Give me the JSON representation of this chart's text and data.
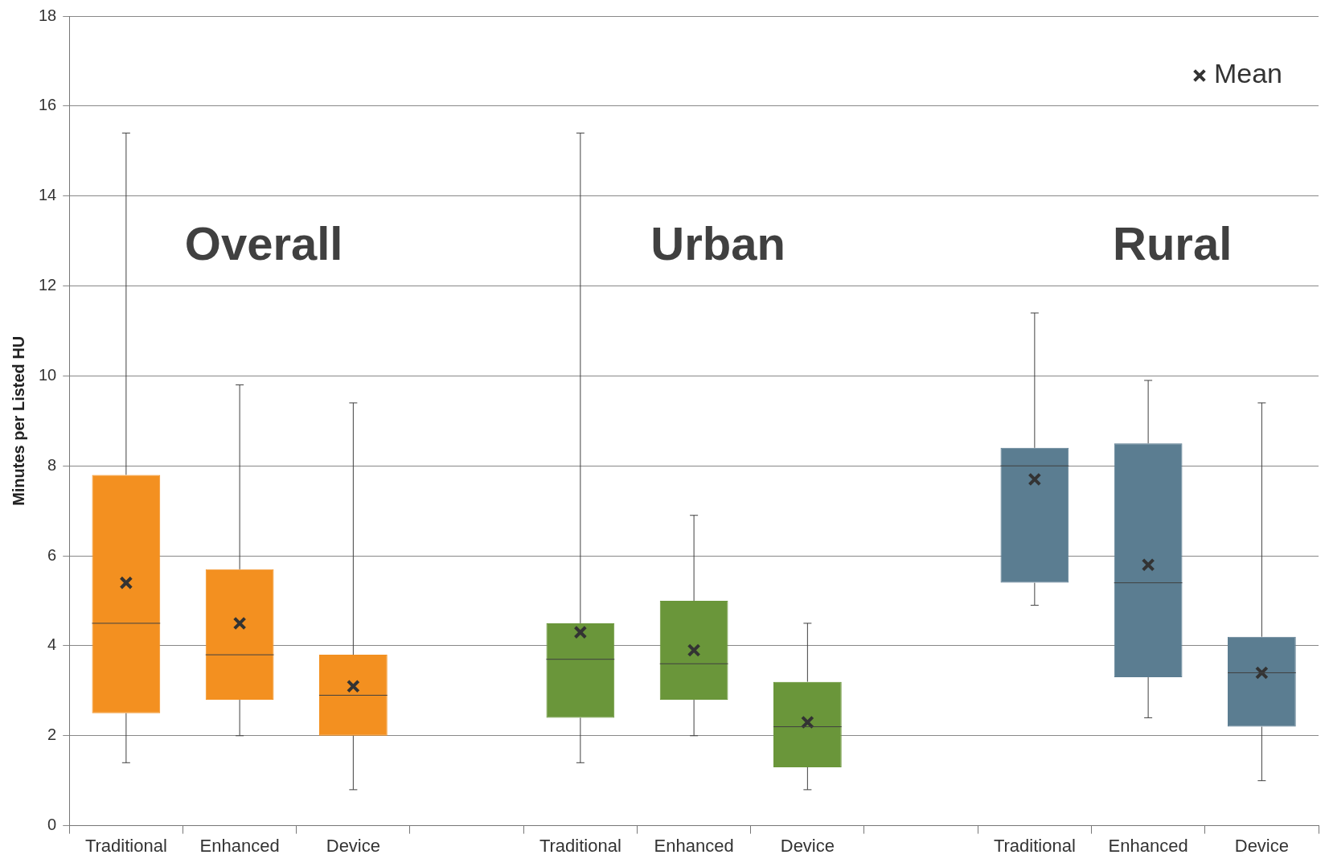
{
  "chart_data": {
    "type": "box",
    "ylabel": "Minutes per Listed HU",
    "categories": [
      "Traditional",
      "Enhanced",
      "Device",
      null,
      "Traditional",
      "Enhanced",
      "Device",
      null,
      "Traditional",
      "Enhanced",
      "Device"
    ],
    "ylim": [
      0,
      18
    ],
    "yticks": [
      0,
      2,
      4,
      6,
      8,
      10,
      12,
      14,
      16,
      18
    ],
    "grid": "y",
    "legend": "top right",
    "annotations": [
      "Overall",
      "Urban",
      "Rural"
    ],
    "series": [
      {
        "color": "#f39020",
        "boxes": [
          {
            "low": 1.4,
            "q1": 2.5,
            "median": 4.5,
            "q3": 7.8,
            "high": 15.4
          },
          {
            "low": 2.0,
            "q1": 2.8,
            "median": 3.8,
            "q3": 5.7,
            "high": 9.8
          },
          {
            "low": 0.8,
            "q1": 2.0,
            "median": 2.9,
            "q3": 3.8,
            "high": 9.4
          },
          null,
          null,
          null,
          null,
          null,
          null,
          null,
          null
        ]
      },
      {
        "color": "#6a963a",
        "boxes": [
          null,
          null,
          null,
          null,
          {
            "low": 1.4,
            "q1": 2.4,
            "median": 3.7,
            "q3": 4.5,
            "high": 15.4
          },
          {
            "low": 2.0,
            "q1": 2.8,
            "median": 3.6,
            "q3": 5.0,
            "high": 6.9
          },
          {
            "low": 0.8,
            "q1": 1.3,
            "median": 2.2,
            "q3": 3.2,
            "high": 4.5
          },
          null,
          null,
          null,
          null
        ]
      },
      {
        "color": "#5b7d91",
        "boxes": [
          null,
          null,
          null,
          null,
          null,
          null,
          null,
          null,
          {
            "low": 4.9,
            "q1": 5.4,
            "median": 8.0,
            "q3": 8.4,
            "high": 11.4
          },
          {
            "low": 2.4,
            "q1": 3.3,
            "median": 5.4,
            "q3": 8.5,
            "high": 9.9
          },
          {
            "low": 1.0,
            "q1": 2.2,
            "median": 3.4,
            "q3": 4.2,
            "high": 9.4
          }
        ]
      },
      {
        "type": "scatter",
        "name": "Mean",
        "color": "#333333",
        "marker": "cross",
        "values": [
          5.4,
          4.5,
          3.1,
          null,
          4.3,
          3.9,
          2.3,
          null,
          7.7,
          5.8,
          3.4
        ]
      }
    ]
  }
}
